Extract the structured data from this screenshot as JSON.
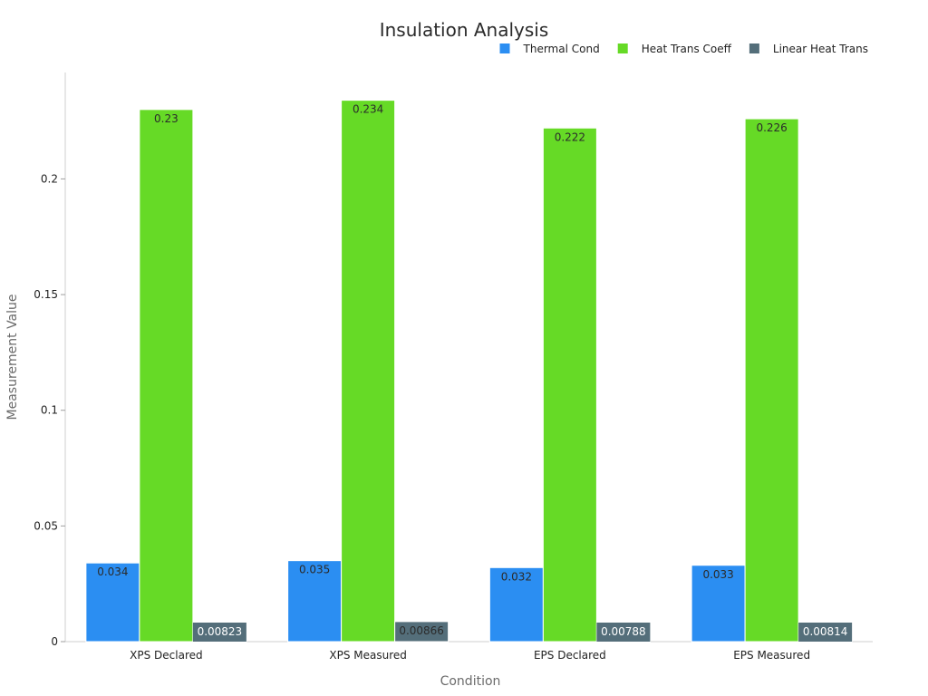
{
  "chart_data": {
    "type": "bar",
    "title": "Insulation Analysis",
    "xlabel": "Condition",
    "ylabel": "Measurement Value",
    "categories": [
      "XPS Declared",
      "XPS Measured",
      "EPS Declared",
      "EPS Measured"
    ],
    "series": [
      {
        "name": "Thermal Cond",
        "color": "#2b8ef2",
        "values": [
          0.034,
          0.035,
          0.032,
          0.033
        ],
        "labels": [
          "0.034",
          "0.035",
          "0.032",
          "0.033"
        ]
      },
      {
        "name": "Heat Trans Coeff",
        "color": "#66da26",
        "values": [
          0.23,
          0.234,
          0.222,
          0.226
        ],
        "labels": [
          "0.23",
          "0.234",
          "0.222",
          "0.226"
        ]
      },
      {
        "name": "Linear Heat Trans",
        "color": "#546e7a",
        "values": [
          0.00823,
          0.00866,
          0.00788,
          0.00814
        ],
        "labels": [
          "0.00823",
          "0.00866",
          "0.00788",
          "0.00814"
        ]
      }
    ],
    "ylim": [
      0,
      0.246
    ],
    "yticks": [
      0,
      0.05,
      0.1,
      0.15,
      0.2
    ],
    "ytick_labels": [
      "0",
      "0.05",
      "0.1",
      "0.15",
      "0.2"
    ],
    "legend_position": "top-right",
    "grid": false
  }
}
